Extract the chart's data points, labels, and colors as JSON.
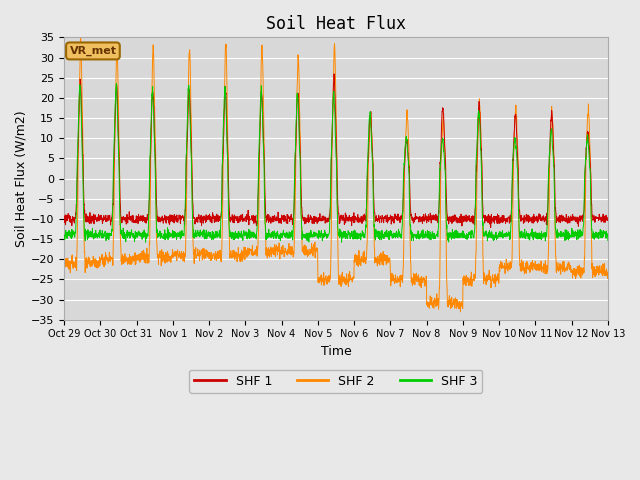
{
  "title": "Soil Heat Flux",
  "xlabel": "Time",
  "ylabel": "Soil Heat Flux (W/m2)",
  "ylim": [
    -35,
    35
  ],
  "yticks": [
    -35,
    -30,
    -25,
    -20,
    -15,
    -10,
    -5,
    0,
    5,
    10,
    15,
    20,
    25,
    30,
    35
  ],
  "xtick_labels": [
    "Oct 29",
    "Oct 30",
    "Oct 31",
    "Nov 1",
    "Nov 2",
    "Nov 3",
    "Nov 4",
    "Nov 5",
    "Nov 6",
    "Nov 7",
    "Nov 8",
    "Nov 9",
    "Nov 10",
    "Nov 11",
    "Nov 12",
    "Nov 13"
  ],
  "legend_labels": [
    "SHF 1",
    "SHF 2",
    "SHF 3"
  ],
  "line_colors": [
    "#cc0000",
    "#ff8800",
    "#00cc00"
  ],
  "annotation_text": "VR_met",
  "annotation_facecolor": "#f0c060",
  "annotation_edgecolor": "#996600",
  "annotation_textcolor": "#663300",
  "bg_color": "#e8e8e8",
  "plot_bg_color": "#d8d8d8",
  "grid_color": "#ffffff",
  "title_fontsize": 12,
  "axis_fontsize": 9,
  "tick_fontsize": 8
}
